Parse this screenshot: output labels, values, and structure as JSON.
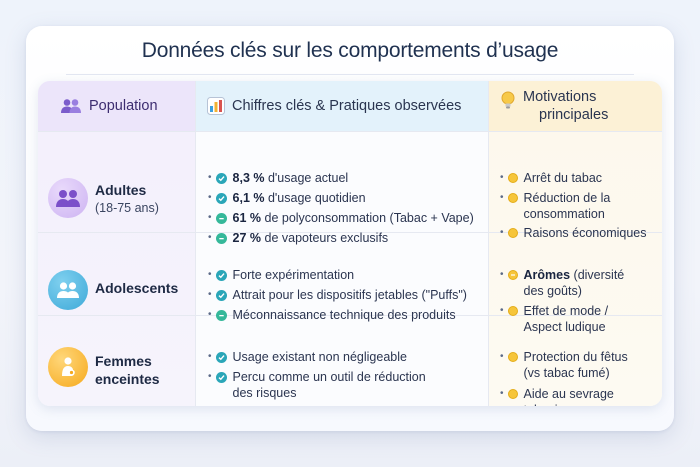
{
  "title": "Données clés sur les comportements d’usage",
  "headers": {
    "population": "Population",
    "figures": "Chiffres clés & Pratiques observées",
    "motivations_l1": "Motivations",
    "motivations_l2": "principales"
  },
  "rows": [
    {
      "name": "Adultes",
      "sub": "(18-75 ans)",
      "figures": [
        {
          "bold": "8,3 %",
          "text": " d'usage actuel"
        },
        {
          "bold": "6,1 %",
          "text": " d'usage quotidien"
        },
        {
          "bold": "61 %",
          "text": " de polyconsommation (Tabac + Vape)"
        },
        {
          "bold": "27 %",
          "text": " de vapoteurs exclusifs"
        }
      ],
      "motivations": [
        {
          "l1": "Arrêt du tabac"
        },
        {
          "l1": "Réduction de la",
          "l2": "consommation"
        },
        {
          "l1": "Raisons économiques"
        }
      ]
    },
    {
      "name": "Adolescents",
      "figures": [
        {
          "text": "Forte expérimentation"
        },
        {
          "text": "Attrait pour les dispositifs jetables (\"Puffs\")"
        },
        {
          "text": "Méconnaissance technique des produits"
        }
      ],
      "motivations": [
        {
          "bold": "Arômes",
          "l1": " (diversité",
          "l2": "des goûts)"
        },
        {
          "l1": "Effet de mode /",
          "l2": "Aspect ludique"
        }
      ]
    },
    {
      "name_l1": "Femmes",
      "name_l2": "enceintes",
      "figures": [
        {
          "text": "Usage existant non négligeable"
        },
        {
          "text": "Percu comme un outil de réduction",
          "text2": "des risques"
        }
      ],
      "motivations": [
        {
          "l1": "Protection du fêtus",
          "l2": "(vs tabac fumé)"
        },
        {
          "l1": "Aide au sevrage",
          "l2": "tabagique"
        }
      ]
    }
  ],
  "icons": {
    "population": "people-icon",
    "figures": "bar-chart-icon",
    "motivations": "lightbulb-icon",
    "adults": "group-icon",
    "teens": "group-icon",
    "pregnant": "pregnant-woman-icon",
    "check": "check-circle-icon",
    "minus": "minus-circle-icon"
  }
}
